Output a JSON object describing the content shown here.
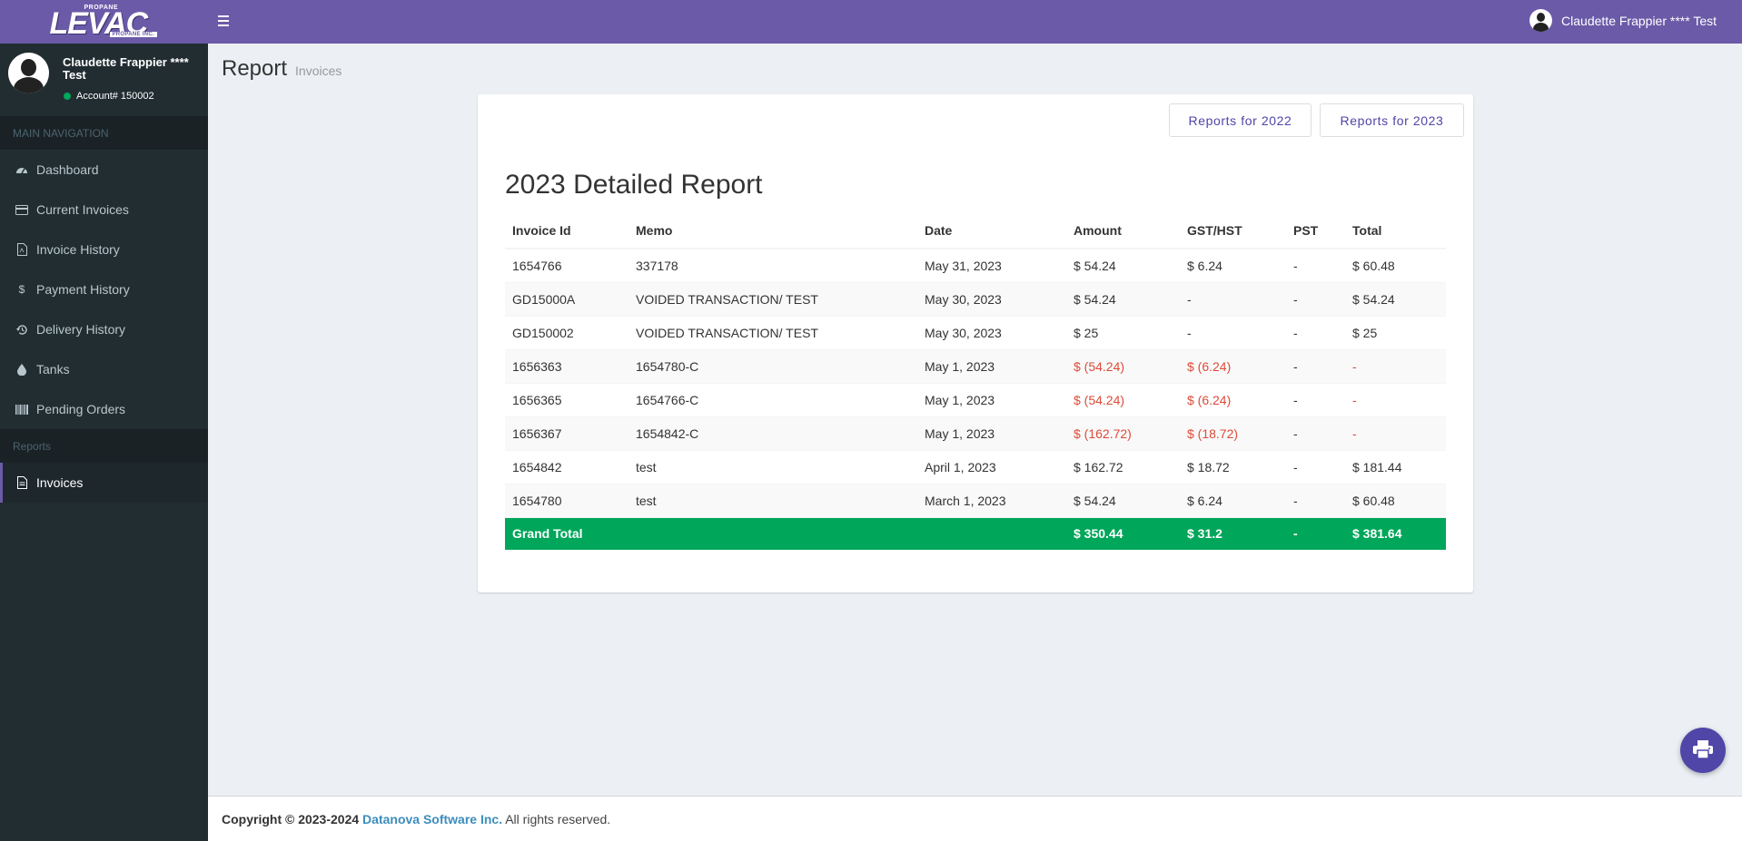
{
  "brand": {
    "logo_top": "PROPANE",
    "logo_main": "LEVAC",
    "logo_bottom": "PROPANE INC."
  },
  "topbar": {
    "user_name": "Claudette Frappier **** Test"
  },
  "sidebar": {
    "user_name": "Claudette Frappier **** Test",
    "account": "Account# 150002",
    "nav_header": "MAIN NAVIGATION",
    "items": [
      {
        "label": "Dashboard",
        "icon": "dashboard-icon"
      },
      {
        "label": "Current Invoices",
        "icon": "credit-card-icon"
      },
      {
        "label": "Invoice History",
        "icon": "pdf-file-icon"
      },
      {
        "label": "Payment History",
        "icon": "dollar-icon"
      },
      {
        "label": "Delivery History",
        "icon": "history-icon"
      },
      {
        "label": "Tanks",
        "icon": "droplet-icon"
      },
      {
        "label": "Pending Orders",
        "icon": "barcode-icon"
      }
    ],
    "reports_header": "Reports",
    "reports_items": [
      {
        "label": "Invoices",
        "icon": "document-icon",
        "active": true
      }
    ]
  },
  "page": {
    "title": "Report",
    "subtitle": "Invoices"
  },
  "report": {
    "btn_2022": "Reports for 2022",
    "btn_2023": "Reports for 2023",
    "title": "2023 Detailed Report",
    "columns": [
      "Invoice Id",
      "Memo",
      "Date",
      "Amount",
      "GST/HST",
      "PST",
      "Total"
    ],
    "rows": [
      [
        "1654766",
        "337178",
        "May 31, 2023",
        "$ 54.24",
        "$ 6.24",
        "-",
        "$ 60.48"
      ],
      [
        "GD15000A",
        "VOIDED TRANSACTION/ TEST",
        "May 30, 2023",
        "$ 54.24",
        "-",
        "-",
        "$ 54.24"
      ],
      [
        "GD150002",
        "VOIDED TRANSACTION/ TEST",
        "May 30, 2023",
        "$ 25",
        "-",
        "-",
        "$ 25"
      ],
      [
        "1656363",
        "1654780-C",
        "May 1, 2023",
        "$ (54.24)",
        "$ (6.24)",
        "-",
        "-"
      ],
      [
        "1656365",
        "1654766-C",
        "May 1, 2023",
        "$ (54.24)",
        "$ (6.24)",
        "-",
        "-"
      ],
      [
        "1656367",
        "1654842-C",
        "May 1, 2023",
        "$ (162.72)",
        "$ (18.72)",
        "-",
        "-"
      ],
      [
        "1654842",
        "test",
        "April 1, 2023",
        "$ 162.72",
        "$ 18.72",
        "-",
        "$ 181.44"
      ],
      [
        "1654780",
        "test",
        "March 1, 2023",
        "$ 54.24",
        "$ 6.24",
        "-",
        "$ 60.48"
      ]
    ],
    "total": {
      "label": "Grand Total",
      "amount": "$ 350.44",
      "gst": "$ 31.2",
      "pst": "-",
      "total": "$ 381.64"
    }
  },
  "footer": {
    "copyright": "Copyright © 2023-2024",
    "company": "Datanova Software Inc.",
    "rights": "All rights reserved."
  },
  "colors": {
    "primary": "#6a5aa8",
    "sidebar": "#222d32",
    "total_row": "#00a65a",
    "negative": "#dd4b39"
  }
}
